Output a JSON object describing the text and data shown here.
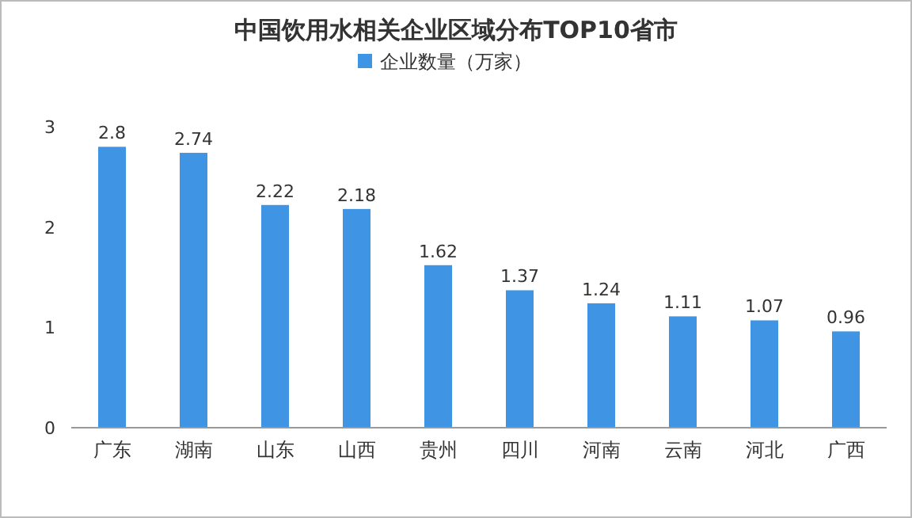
{
  "chart_data": {
    "type": "bar",
    "title": "中国饮用水相关企业区域分布TOP10省市",
    "categories": [
      "广东",
      "湖南",
      "山东",
      "山西",
      "贵州",
      "四川",
      "河南",
      "云南",
      "河北",
      "广西"
    ],
    "series": [
      {
        "name": "企业数量（万家）",
        "color": "#3f95e4",
        "values": [
          2.8,
          2.74,
          2.22,
          2.18,
          1.62,
          1.37,
          1.24,
          1.11,
          1.07,
          0.96
        ]
      }
    ],
    "ylim": [
      0,
      3
    ],
    "yticks": [
      0,
      1,
      2,
      3
    ],
    "data_labels": true,
    "legend": "top"
  }
}
